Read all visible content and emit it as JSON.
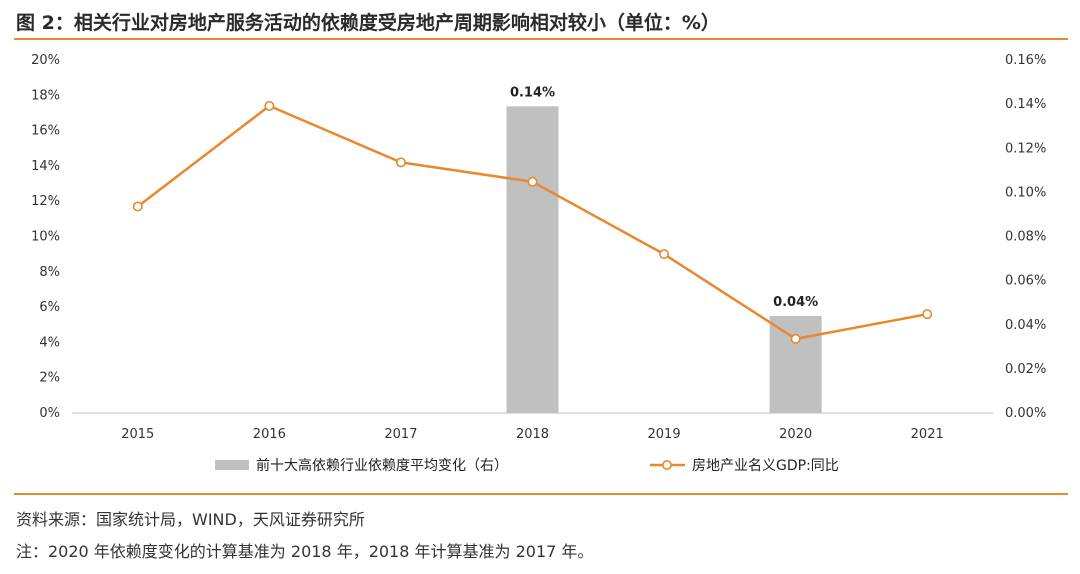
{
  "title": "图 2：相关行业对房地产服务活动的依赖度受房地产周期影响相对较小（单位：%）",
  "source": "资料来源：国家统计局，WIND，天风证券研究所",
  "footnote": "注：2020 年依赖度变化的计算基准为 2018 年，2018 年计算基准为 2017 年。",
  "chart_data": {
    "type": "bar+line",
    "categories": [
      "2015",
      "2016",
      "2017",
      "2018",
      "2019",
      "2020",
      "2021"
    ],
    "left_axis": {
      "ylim": [
        0,
        20
      ],
      "ticks": [
        "0%",
        "2%",
        "4%",
        "6%",
        "8%",
        "10%",
        "12%",
        "14%",
        "16%",
        "18%",
        "20%"
      ]
    },
    "right_axis": {
      "ylim": [
        0,
        0.16
      ],
      "ticks": [
        "0.00%",
        "0.02%",
        "0.04%",
        "0.06%",
        "0.08%",
        "0.10%",
        "0.12%",
        "0.14%",
        "0.16%"
      ]
    },
    "series": [
      {
        "name": "前十大高依赖行业依赖度平均变化（右）",
        "kind": "bar",
        "axis": "right",
        "color": "#c0c0c0",
        "values": [
          null,
          null,
          null,
          0.139,
          null,
          0.044,
          null
        ],
        "data_labels": [
          null,
          null,
          null,
          "0.14%",
          null,
          "0.04%",
          null
        ]
      },
      {
        "name": "房地产业名义GDP:同比",
        "kind": "line",
        "axis": "left",
        "color": "#e8882f",
        "values": [
          11.7,
          17.4,
          14.2,
          13.1,
          9.0,
          4.2,
          5.6
        ]
      }
    ],
    "legend_position": "bottom",
    "grid": false
  }
}
